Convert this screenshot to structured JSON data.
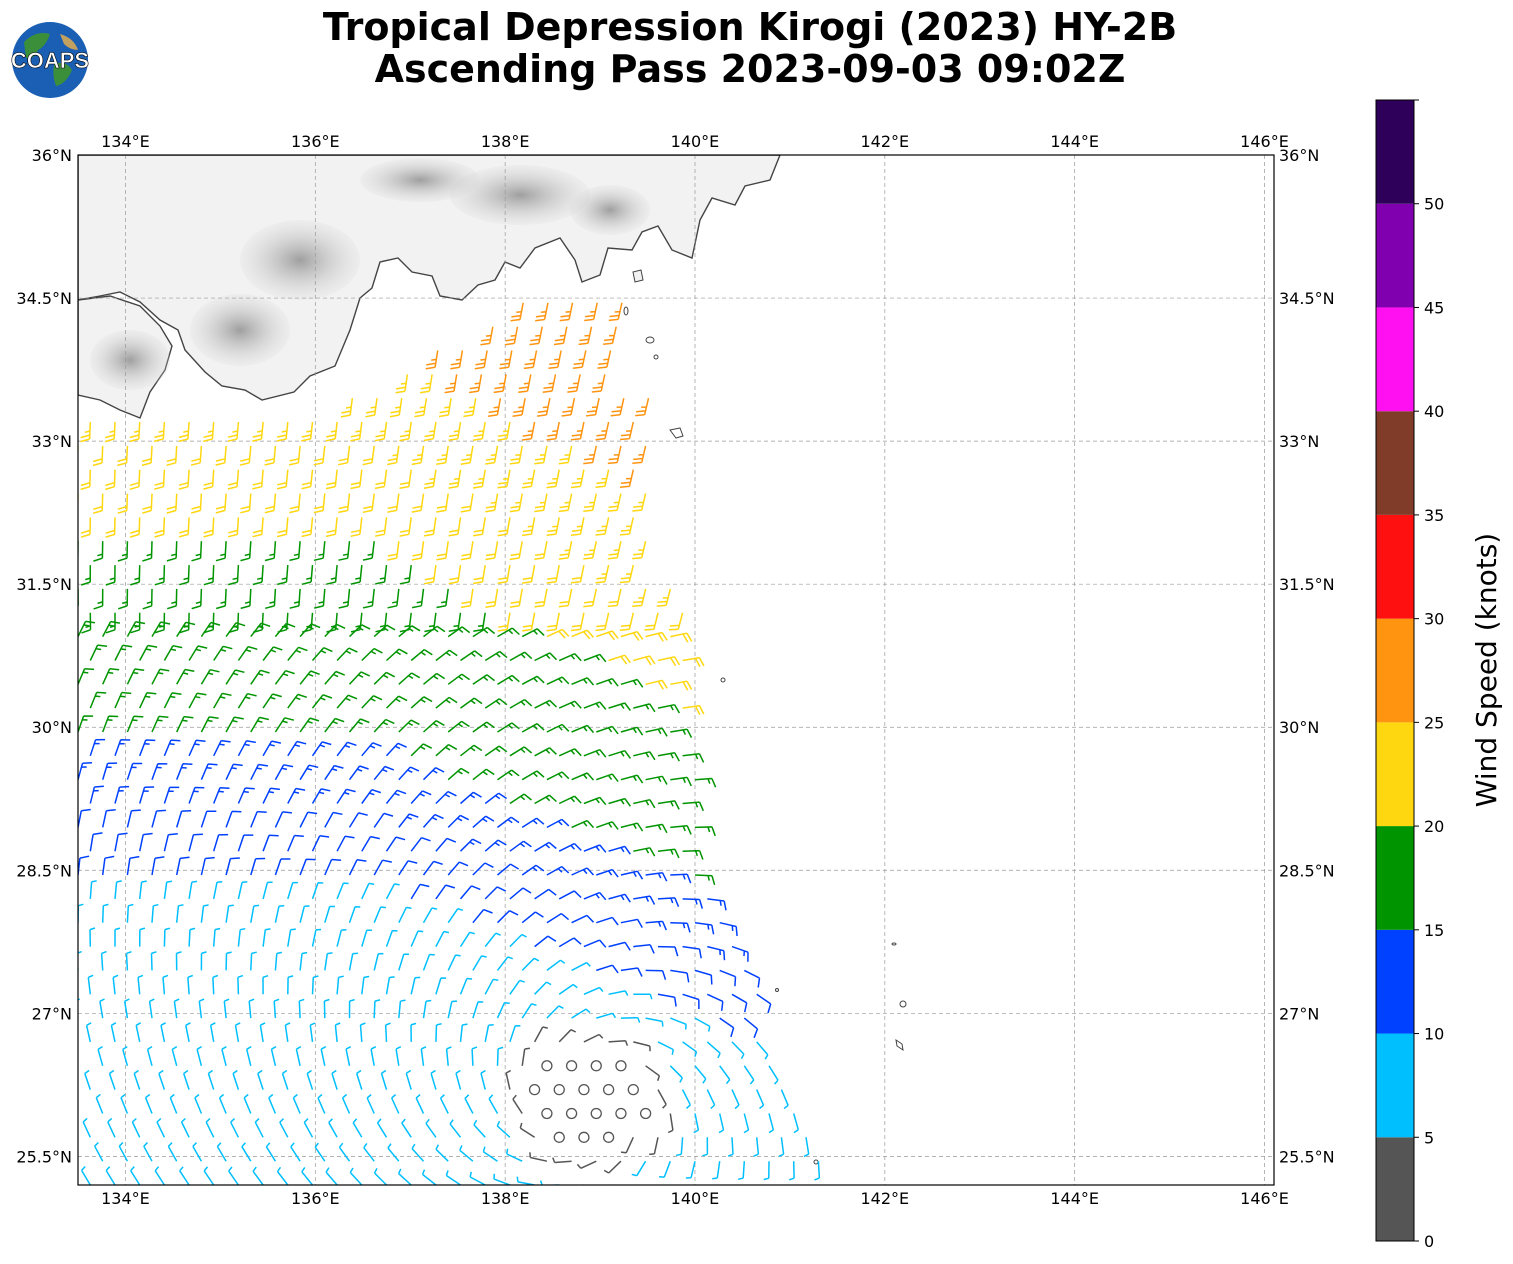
{
  "title": {
    "line1": "Tropical Depression Kirogi (2023) HY-2B",
    "line2": "Ascending Pass 2023-09-03 09:02Z"
  },
  "logo": {
    "text": "COAPS"
  },
  "map": {
    "lon_range": [
      133.5,
      146.1
    ],
    "lat_range": [
      25.2,
      36.0
    ],
    "lon_ticks": [
      "134°E",
      "136°E",
      "138°E",
      "140°E",
      "142°E",
      "144°E",
      "146°E"
    ],
    "lat_ticks": [
      "36°N",
      "34.5°N",
      "33°N",
      "31.5°N",
      "30°N",
      "28.5°N",
      "27°N",
      "25.5°N"
    ],
    "gridlines": true
  },
  "colorbar": {
    "label": "Wind Speed (knots)",
    "ticks": [
      "0",
      "5",
      "10",
      "15",
      "20",
      "25",
      "30",
      "35",
      "40",
      "45",
      "50"
    ],
    "bins": [
      {
        "from": 0,
        "to": 5,
        "color": "#555555"
      },
      {
        "from": 5,
        "to": 10,
        "color": "#00bfff"
      },
      {
        "from": 10,
        "to": 15,
        "color": "#0040ff"
      },
      {
        "from": 15,
        "to": 20,
        "color": "#009400"
      },
      {
        "from": 20,
        "to": 25,
        "color": "#ffd710"
      },
      {
        "from": 25,
        "to": 30,
        "color": "#ff9410"
      },
      {
        "from": 30,
        "to": 35,
        "color": "#ff1010"
      },
      {
        "from": 35,
        "to": 40,
        "color": "#803c28"
      },
      {
        "from": 40,
        "to": 45,
        "color": "#ff10f0"
      },
      {
        "from": 45,
        "to": 50,
        "color": "#8000b0"
      },
      {
        "from": 50,
        "to": 55,
        "color": "#2e005a"
      }
    ]
  },
  "wind_field": {
    "storm_center": {
      "lon": 138.9,
      "lat": 26.1
    },
    "swath_lon_range": [
      133.5,
      140.8
    ],
    "swath_lat_range": [
      25.2,
      34.5
    ]
  }
}
